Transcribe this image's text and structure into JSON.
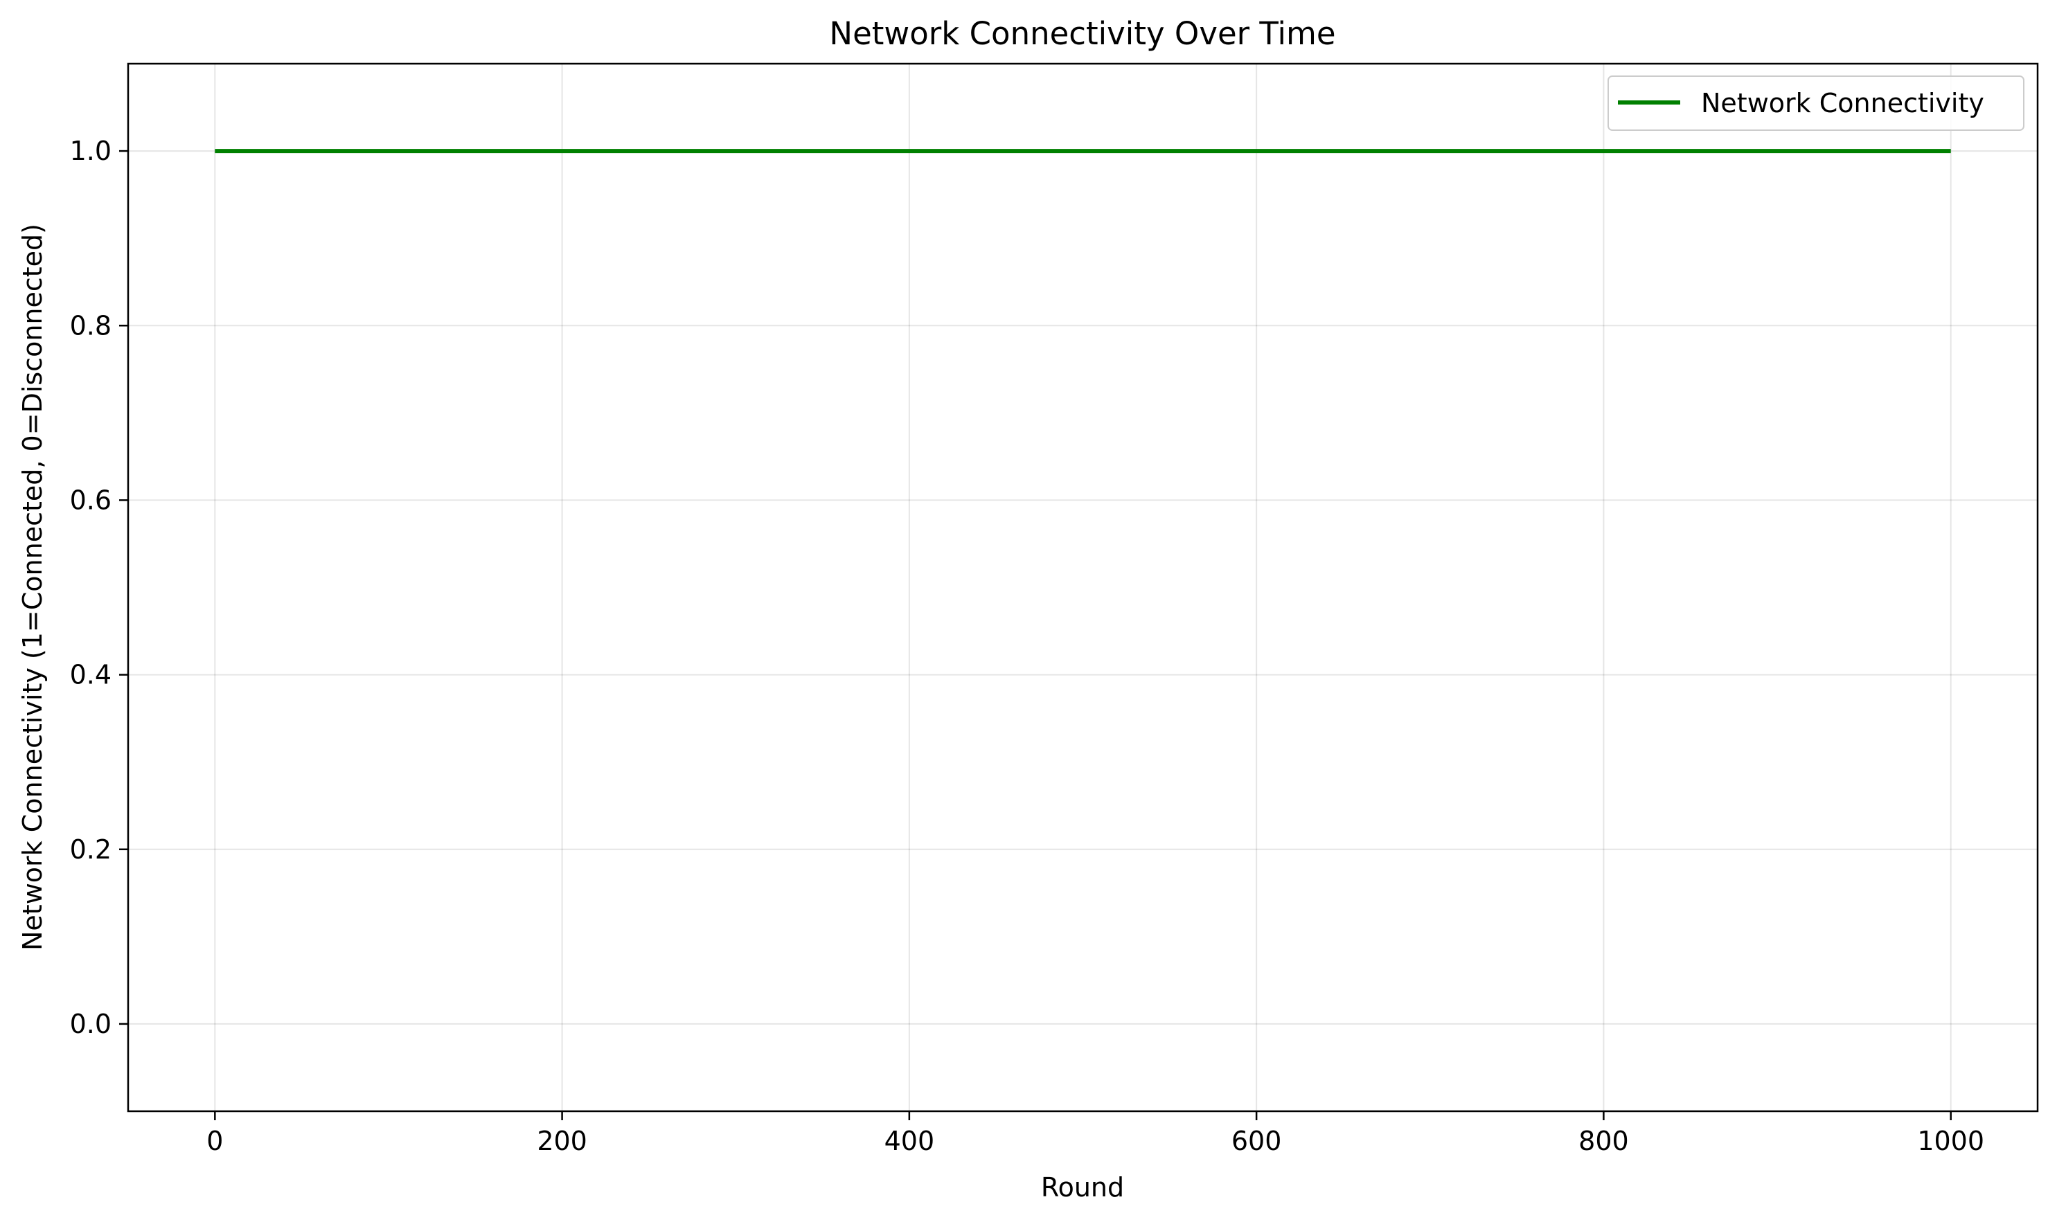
{
  "chart_data": {
    "type": "line",
    "title": "Network Connectivity Over Time",
    "xlabel": "Round",
    "ylabel": "Network Connectivity (1=Connected, 0=Disconnected)",
    "xlim": [
      -50,
      1050
    ],
    "ylim": [
      -0.1,
      1.1
    ],
    "xticks": [
      0,
      200,
      400,
      600,
      800,
      1000
    ],
    "xtick_labels": [
      "0",
      "200",
      "400",
      "600",
      "800",
      "1000"
    ],
    "yticks": [
      0.0,
      0.2,
      0.4,
      0.6,
      0.8,
      1.0
    ],
    "ytick_labels": [
      "0.0",
      "0.2",
      "0.4",
      "0.6",
      "0.8",
      "1.0"
    ],
    "grid": true,
    "legend_position": "top-right",
    "series": [
      {
        "name": "Network Connectivity",
        "color": "#008000",
        "x": [
          0,
          1000
        ],
        "y": [
          1,
          1
        ]
      }
    ]
  }
}
